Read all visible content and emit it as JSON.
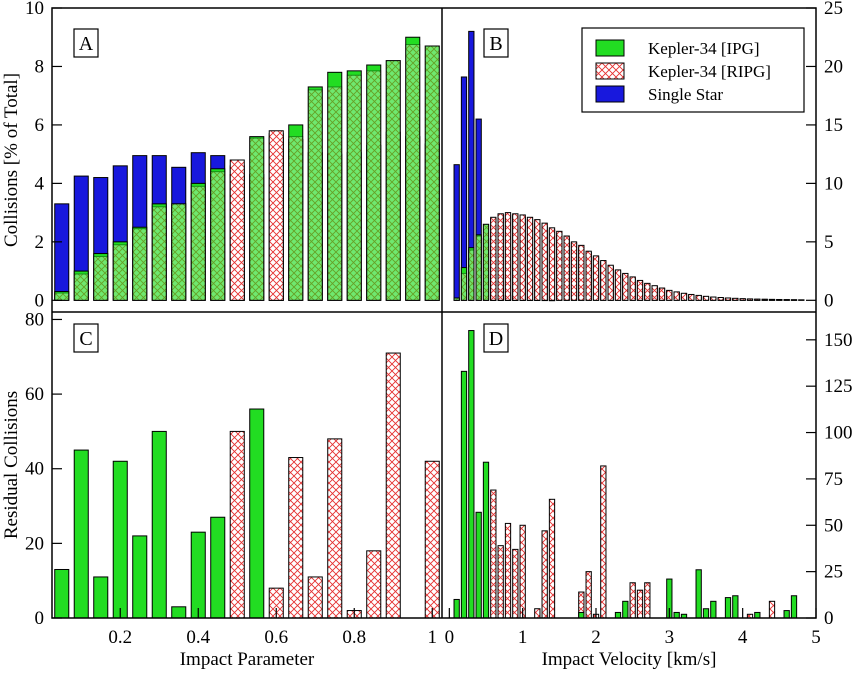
{
  "colors": {
    "ipg": "#22dd22",
    "ripg_fill": "#ffffff",
    "ripg_hatch": "#e53030",
    "single": "#1818dd",
    "frame": "#000000"
  },
  "legend": {
    "items": [
      "Kepler-34 [IPG]",
      "Kepler-34 [RIPG]",
      "Single Star"
    ]
  },
  "axis_labels": {
    "top_left_y": "Collisions [% of Total]",
    "bottom_left_y": "Residual Collisions",
    "bottom_left_x": "Impact Parameter",
    "bottom_right_x": "Impact Velocity [km/s]"
  },
  "chart_data": [
    {
      "panel": "A",
      "type": "bar",
      "xlabel": "",
      "ylabel": "Collisions [% of Total]",
      "xlim": [
        0.025,
        1.025
      ],
      "ylim": [
        -0.4,
        10
      ],
      "y_ticks": [
        0,
        2,
        4,
        6,
        8,
        10
      ],
      "x": [
        0.05,
        0.1,
        0.15,
        0.2,
        0.25,
        0.3,
        0.35,
        0.4,
        0.45,
        0.5,
        0.55,
        0.6,
        0.65,
        0.7,
        0.75,
        0.8,
        0.85,
        0.9,
        0.95,
        1.0
      ],
      "series": [
        {
          "name": "Kepler-34 [IPG]",
          "values": [
            0.3,
            1.0,
            1.6,
            2.0,
            2.5,
            3.3,
            3.3,
            4.0,
            4.5,
            4.6,
            5.6,
            5.7,
            6.0,
            7.3,
            7.8,
            7.85,
            8.05,
            8.2,
            9.0,
            8.7
          ]
        },
        {
          "name": "Kepler-34 [RIPG]",
          "values": [
            0.25,
            0.9,
            1.5,
            1.9,
            2.45,
            3.2,
            3.3,
            3.9,
            4.4,
            4.8,
            5.55,
            5.8,
            5.6,
            7.2,
            7.3,
            7.7,
            7.85,
            8.2,
            8.75,
            8.7
          ]
        },
        {
          "name": "Single Star",
          "values": [
            3.3,
            4.25,
            4.2,
            4.6,
            4.95,
            4.95,
            4.55,
            5.05,
            4.95,
            4.3,
            4.3,
            5.55,
            5.5,
            5.05,
            5.0,
            5.05,
            5.3,
            5.75,
            5.6,
            5.35
          ]
        }
      ]
    },
    {
      "panel": "B",
      "type": "bar",
      "xlabel": "",
      "ylabel": "",
      "xlim": [
        -0.1,
        5.0
      ],
      "ylim": [
        -1.0,
        25.0
      ],
      "y_ticks": [
        0,
        5,
        10,
        15,
        20,
        25
      ],
      "x": [
        0.1,
        0.2,
        0.3,
        0.4,
        0.5,
        0.6,
        0.7,
        0.8,
        0.9,
        1.0,
        1.1,
        1.2,
        1.3,
        1.4,
        1.5,
        1.6,
        1.7,
        1.8,
        1.9,
        2.0,
        2.1,
        2.2,
        2.3,
        2.4,
        2.5,
        2.6,
        2.7,
        2.8,
        2.9,
        3.0,
        3.1,
        3.2,
        3.3,
        3.4,
        3.5,
        3.6,
        3.7,
        3.8,
        3.9,
        4.0,
        4.1,
        4.2,
        4.3,
        4.4,
        4.5,
        4.6,
        4.7,
        4.8
      ],
      "series": [
        {
          "name": "Kepler-34 [IPG]",
          "values": [
            0.2,
            2.8,
            4.5,
            5.6,
            6.5,
            7.0,
            7.3,
            7.3,
            7.3,
            7.1,
            6.9,
            6.6,
            6.3,
            6.0,
            5.7,
            5.3,
            4.9,
            4.5,
            4.1,
            3.7,
            3.3,
            2.9,
            2.5,
            2.2,
            1.9,
            1.6,
            1.4,
            1.2,
            1.0,
            0.8,
            0.7,
            0.55,
            0.45,
            0.4,
            0.3,
            0.25,
            0.22,
            0.18,
            0.15,
            0.12,
            0.1,
            0.09,
            0.08,
            0.07,
            0.06,
            0.05,
            0.04,
            0.04
          ]
        },
        {
          "name": "Kepler-34 [RIPG]",
          "values": [
            0.2,
            2.3,
            4.3,
            5.5,
            6.5,
            7.1,
            7.4,
            7.5,
            7.4,
            7.3,
            7.1,
            6.9,
            6.6,
            6.2,
            5.9,
            5.5,
            5.0,
            4.7,
            4.2,
            3.8,
            3.4,
            3.0,
            2.6,
            2.3,
            2.0,
            1.7,
            1.45,
            1.25,
            1.05,
            0.85,
            0.72,
            0.6,
            0.5,
            0.42,
            0.34,
            0.28,
            0.24,
            0.2,
            0.17,
            0.14,
            0.12,
            0.1,
            0.09,
            0.08,
            0.07,
            0.06,
            0.05,
            0.04
          ]
        },
        {
          "name": "Single Star",
          "values": [
            11.6,
            19.1,
            23.0,
            15.5,
            5.3,
            2.1,
            0.9,
            0.4,
            0.2,
            0.1,
            0.05,
            0.03,
            0.02,
            0.01,
            0,
            0,
            0,
            0,
            0,
            0,
            0,
            0,
            0,
            0,
            0,
            0,
            0,
            0,
            0,
            0,
            0,
            0,
            0,
            0,
            0,
            0,
            0,
            0,
            0,
            0,
            0,
            0,
            0,
            0,
            0,
            0,
            0,
            0
          ]
        }
      ]
    },
    {
      "panel": "C",
      "type": "bar",
      "xlabel": "Impact Parameter",
      "ylabel": "Residual Collisions",
      "xlim": [
        0.025,
        1.025
      ],
      "ylim": [
        0,
        82
      ],
      "x_ticks": [
        0.2,
        0.4,
        0.6,
        0.8,
        1
      ],
      "y_ticks": [
        0,
        20,
        40,
        60,
        80
      ],
      "x": [
        0.05,
        0.1,
        0.15,
        0.2,
        0.25,
        0.3,
        0.35,
        0.4,
        0.45,
        0.5,
        0.55,
        0.6,
        0.65,
        0.7,
        0.75,
        0.8,
        0.85,
        0.9,
        0.95,
        1.0
      ],
      "series": [
        {
          "name": "Kepler-34 [IPG]",
          "values": [
            13,
            45,
            11,
            42,
            22,
            50,
            3,
            23,
            27,
            0,
            56,
            0,
            0,
            0,
            0,
            0,
            0,
            0,
            0,
            0
          ]
        },
        {
          "name": "Kepler-34 [RIPG]",
          "values": [
            0,
            0,
            0,
            0,
            0,
            0,
            0,
            0,
            0,
            50,
            0,
            8,
            43,
            11,
            48,
            2,
            18,
            71,
            0,
            42
          ]
        }
      ]
    },
    {
      "panel": "D",
      "type": "bar",
      "xlabel": "Impact Velocity [km/s]",
      "ylabel": "",
      "xlim": [
        -0.1,
        5.0
      ],
      "ylim": [
        0,
        165
      ],
      "x_ticks": [
        0,
        1,
        2,
        3,
        4,
        5
      ],
      "y_ticks": [
        0,
        25,
        50,
        75,
        100,
        125,
        150
      ],
      "x": [
        0.1,
        0.2,
        0.3,
        0.4,
        0.5,
        0.6,
        0.7,
        0.8,
        0.9,
        1.0,
        1.1,
        1.2,
        1.3,
        1.4,
        1.5,
        1.6,
        1.7,
        1.8,
        1.9,
        2.0,
        2.1,
        2.2,
        2.3,
        2.4,
        2.5,
        2.6,
        2.7,
        2.8,
        2.9,
        3.0,
        3.1,
        3.2,
        3.3,
        3.4,
        3.5,
        3.6,
        3.7,
        3.8,
        3.9,
        4.0,
        4.1,
        4.2,
        4.3,
        4.4,
        4.5,
        4.6,
        4.7,
        4.8
      ],
      "series": [
        {
          "name": "Kepler-34 [IPG]",
          "values": [
            10,
            133,
            155,
            57,
            84,
            0,
            0,
            0,
            0,
            0,
            0,
            0,
            0,
            0,
            0,
            0,
            0,
            3,
            0,
            0,
            0,
            0,
            3,
            9,
            0,
            0,
            0,
            0,
            0,
            21,
            3,
            2,
            0,
            26,
            5,
            9,
            0,
            11,
            12,
            0,
            0,
            3,
            0,
            0,
            0,
            4,
            12,
            0
          ]
        },
        {
          "name": "Kepler-34 [RIPG]",
          "values": [
            0,
            0,
            0,
            0,
            0,
            69,
            39,
            51,
            37,
            50,
            0,
            5,
            47,
            64,
            0,
            0,
            0,
            14,
            25,
            2,
            82,
            0,
            0,
            0,
            19,
            15,
            19,
            0,
            0,
            0,
            0,
            0,
            0,
            0,
            0,
            0,
            0,
            0,
            0,
            0,
            2,
            0,
            0,
            9,
            0,
            0,
            0,
            0
          ]
        }
      ]
    }
  ]
}
